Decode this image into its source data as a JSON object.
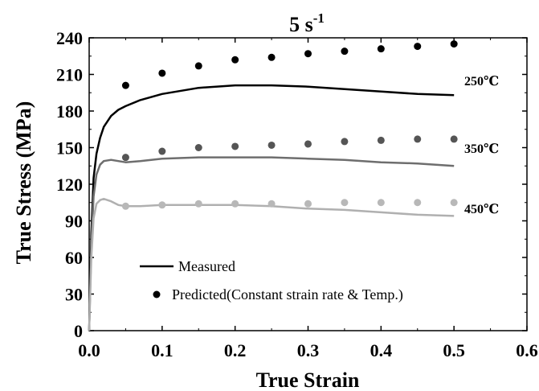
{
  "chart_data": {
    "type": "line",
    "title": "5 s",
    "title_superscript": "-1",
    "xlabel": "True Strain",
    "ylabel": "True Stress (MPa)",
    "xlim": [
      0.0,
      0.6
    ],
    "ylim": [
      0,
      240
    ],
    "x_ticks": [
      "0.0",
      "0.1",
      "0.2",
      "0.3",
      "0.4",
      "0.5",
      "0.6"
    ],
    "y_ticks": [
      "0",
      "30",
      "60",
      "90",
      "120",
      "150",
      "180",
      "210",
      "240"
    ],
    "grid": false,
    "legend_position": "bottom-left",
    "legend": [
      {
        "label": "Measured",
        "marker": "line"
      },
      {
        "label": "Predicted(Constant strain rate & Temp.)",
        "marker": "dot"
      }
    ],
    "series": [
      {
        "temperature": "250℃",
        "color": "#000000",
        "measured": {
          "x": [
            0.0,
            0.003,
            0.006,
            0.01,
            0.015,
            0.02,
            0.03,
            0.04,
            0.05,
            0.07,
            0.1,
            0.15,
            0.2,
            0.25,
            0.3,
            0.35,
            0.4,
            0.45,
            0.5
          ],
          "y": [
            0,
            80,
            125,
            145,
            158,
            167,
            176,
            181,
            184,
            189,
            194,
            199,
            201,
            201,
            200,
            198,
            196,
            194,
            193
          ]
        },
        "predicted": {
          "x": [
            0.05,
            0.1,
            0.15,
            0.2,
            0.25,
            0.3,
            0.35,
            0.4,
            0.45,
            0.5
          ],
          "y": [
            201,
            211,
            217,
            222,
            224,
            227,
            229,
            231,
            233,
            235
          ]
        }
      },
      {
        "temperature": "350℃",
        "color": "#6e6e6e",
        "predicted_color": "#555555",
        "measured": {
          "x": [
            0.0,
            0.003,
            0.006,
            0.01,
            0.015,
            0.02,
            0.03,
            0.04,
            0.05,
            0.07,
            0.1,
            0.15,
            0.2,
            0.25,
            0.3,
            0.35,
            0.4,
            0.45,
            0.5
          ],
          "y": [
            0,
            70,
            110,
            128,
            136,
            139,
            140,
            139,
            138,
            139,
            141,
            142,
            142,
            142,
            141,
            140,
            138,
            137,
            135
          ]
        },
        "predicted": {
          "x": [
            0.05,
            0.1,
            0.15,
            0.2,
            0.25,
            0.3,
            0.35,
            0.4,
            0.45,
            0.5
          ],
          "y": [
            142,
            147,
            150,
            151,
            152,
            153,
            155,
            156,
            157,
            157
          ]
        }
      },
      {
        "temperature": "450℃",
        "color": "#b0b0b0",
        "predicted_color": "#b8b8b8",
        "measured": {
          "x": [
            0.0,
            0.003,
            0.006,
            0.01,
            0.015,
            0.02,
            0.03,
            0.04,
            0.05,
            0.07,
            0.1,
            0.15,
            0.2,
            0.25,
            0.3,
            0.35,
            0.4,
            0.45,
            0.5
          ],
          "y": [
            0,
            60,
            92,
            104,
            107,
            108,
            106,
            103,
            102,
            102,
            103,
            103,
            103,
            102,
            100,
            99,
            97,
            95,
            94
          ]
        },
        "predicted": {
          "x": [
            0.05,
            0.1,
            0.15,
            0.2,
            0.25,
            0.3,
            0.35,
            0.4,
            0.45,
            0.5
          ],
          "y": [
            102,
            103,
            104,
            104,
            104,
            104,
            105,
            105,
            105,
            105
          ]
        }
      }
    ]
  }
}
